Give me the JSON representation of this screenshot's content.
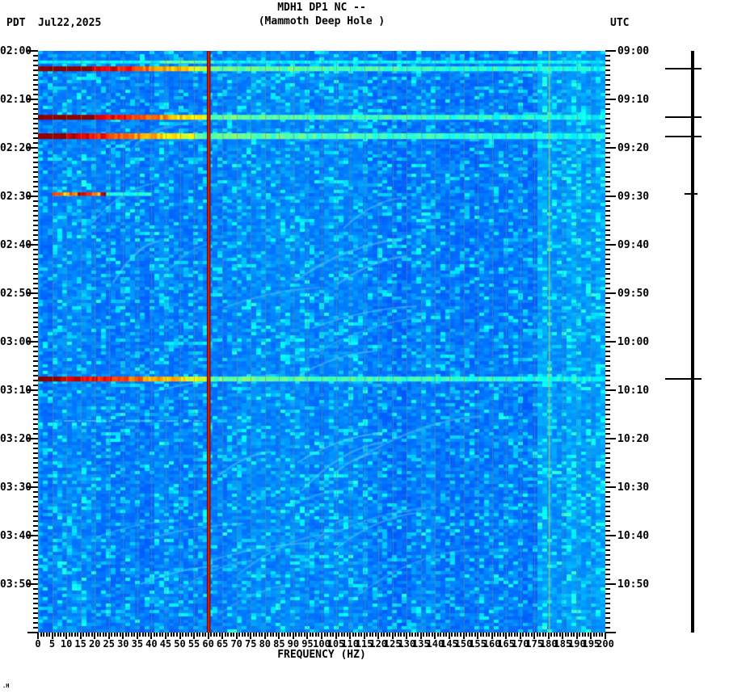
{
  "header": {
    "tz_left": "PDT",
    "date": "Jul22,2025",
    "title": "MDH1 DP1 NC --",
    "subtitle": "(Mammoth Deep Hole )",
    "tz_right": "UTC"
  },
  "corner_mark": ".H",
  "chart_data": {
    "type": "heatmap",
    "title": "MDH1 DP1 NC --",
    "subtitle": "(Mammoth Deep Hole )",
    "station": "MDH1 DP1 NC",
    "station_name": "Mammoth Deep Hole",
    "date": "Jul22,2025",
    "xlabel": "FREQUENCY (HZ)",
    "x_range_hz": [
      0,
      200
    ],
    "x_major_tick_step_hz": 5,
    "x_minor_tick_step_hz": 1,
    "x_tick_labels": [
      "0",
      "5",
      "10",
      "15",
      "20",
      "25",
      "30",
      "35",
      "40",
      "45",
      "50",
      "55",
      "60",
      "65",
      "70",
      "75",
      "80",
      "85",
      "90",
      "95",
      "100",
      "105",
      "110",
      "115",
      "120",
      "125",
      "130",
      "135",
      "140",
      "145",
      "150",
      "155",
      "160",
      "165",
      "170",
      "175",
      "180",
      "185",
      "190",
      "195",
      "200"
    ],
    "time_axis": {
      "left_timezone": "PDT",
      "right_timezone": "UTC",
      "start_pdt": "02:00",
      "end_pdt": "04:00",
      "start_utc": "09:00",
      "end_utc": "11:00",
      "minutes_total": 120,
      "major_tick_minutes": 10,
      "minor_tick_minutes": 1,
      "left_tick_labels": [
        "02:00",
        "02:10",
        "02:20",
        "02:30",
        "02:40",
        "02:50",
        "03:00",
        "03:10",
        "03:20",
        "03:30",
        "03:40",
        "03:50"
      ],
      "right_tick_labels": [
        "09:00",
        "09:10",
        "09:20",
        "09:30",
        "09:40",
        "09:50",
        "10:00",
        "10:10",
        "10:20",
        "10:30",
        "10:40",
        "10:50"
      ]
    },
    "colormap": "jet",
    "background": "low-power blue with cyan speckle noise and faint rising cyan chirp streaks",
    "gridlines_every_hz": 5,
    "palette": {
      "background_blue": "#0a7bf0",
      "speckle_cyan": "#00d0ff",
      "event_saturated": "#8b0000",
      "powerline_red": "#e81c00",
      "harmonic_green": "#b8d24b",
      "gridline_grey": "#7d8773"
    },
    "powerline_marker": {
      "hz": 60,
      "color": "#e81c00"
    },
    "powerline_harmonic": {
      "hz": 180,
      "color": "#b8d24b"
    },
    "events": [
      {
        "time_pdt": "02:02",
        "time_utc": "09:02",
        "start_min": 2.0,
        "duration_min": 0.6,
        "from_hz": 0,
        "saturated_to_hz": 0,
        "strong_to_hz": 0,
        "visible_to_hz": 200,
        "strength": "weak",
        "marker_tick": "none"
      },
      {
        "time_pdt": "02:04",
        "time_utc": "09:04",
        "start_min": 3.2,
        "duration_min": 1.0,
        "from_hz": 0,
        "saturated_to_hz": 19,
        "strong_to_hz": 60,
        "visible_to_hz": 200,
        "strength": "strong",
        "marker_tick": "long"
      },
      {
        "time_pdt": "02:13",
        "time_utc": "09:13",
        "start_min": 13.2,
        "duration_min": 1.0,
        "from_hz": 0,
        "saturated_to_hz": 20,
        "strong_to_hz": 60,
        "visible_to_hz": 200,
        "strength": "strong",
        "marker_tick": "long"
      },
      {
        "time_pdt": "02:18",
        "time_utc": "09:18",
        "start_min": 17.0,
        "duration_min": 1.2,
        "from_hz": 0,
        "saturated_to_hz": 10,
        "strong_to_hz": 55,
        "visible_to_hz": 200,
        "strength": "strong",
        "marker_tick": "long"
      },
      {
        "time_pdt": "02:30",
        "time_utc": "09:30",
        "start_min": 29.2,
        "duration_min": 0.7,
        "from_hz": 5,
        "saturated_to_hz": 10,
        "strong_to_hz": 24,
        "visible_to_hz": 40,
        "strength": "moderate",
        "marker_tick": "short"
      },
      {
        "time_pdt": "03:08",
        "time_utc": "10:08",
        "start_min": 67.2,
        "duration_min": 1.0,
        "from_hz": 0,
        "saturated_to_hz": 8,
        "strong_to_hz": 60,
        "visible_to_hz": 200,
        "strength": "strong",
        "marker_tick": "long"
      },
      {
        "time_pdt": "03:16",
        "time_utc": "10:16",
        "start_min": 76.0,
        "duration_min": 0.5,
        "from_hz": 5,
        "saturated_to_hz": 0,
        "strong_to_hz": 0,
        "visible_to_hz": 60,
        "strength": "faint",
        "marker_tick": "none"
      }
    ]
  }
}
